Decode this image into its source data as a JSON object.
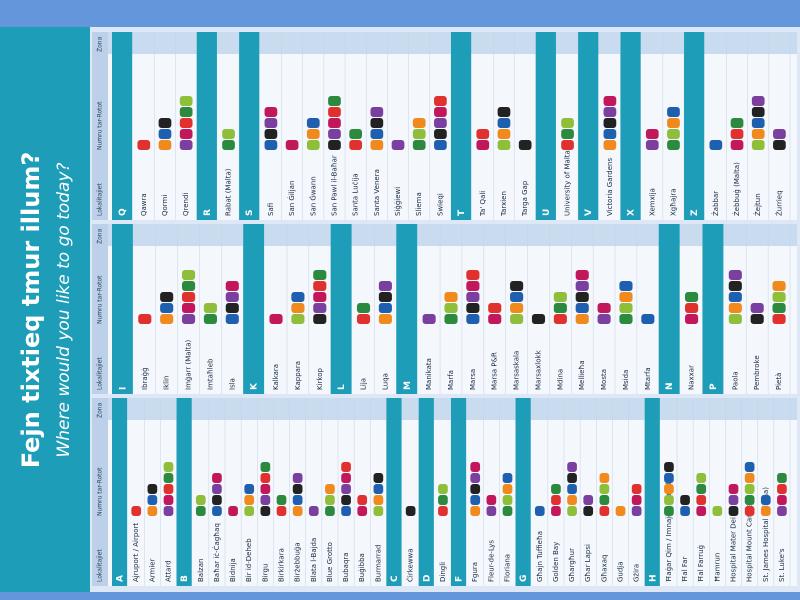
{
  "header": {
    "title": "Fejn tixtieq tmur illum?",
    "subtitle": "Where would you like to go today?"
  },
  "columns": [
    "Lokalitajiet",
    "Numru tar-Rotot",
    "Żona"
  ],
  "panels": [
    {
      "sections": [
        {
          "letter": "A",
          "localities": [
            "Ajruport / Airport",
            "Armier",
            "Attard"
          ]
        },
        {
          "letter": "B",
          "localities": [
            "Balzan",
            "Baħar iċ-Ċagħaq",
            "Bidnija",
            "Bir id-Deheb",
            "Birgu",
            "Birkirkara",
            "Birżebbuġa",
            "Blata l-Bajda",
            "Blue Grotto",
            "Bubaqra",
            "Buġibba",
            "Burmarrad"
          ]
        },
        {
          "letter": "C",
          "localities": [
            "Ċirkewwa"
          ]
        },
        {
          "letter": "D",
          "localities": [
            "Dingli"
          ]
        },
        {
          "letter": "F",
          "localities": [
            "Fgura",
            "Fleur-de-Lys",
            "Floriana"
          ]
        },
        {
          "letter": "G",
          "localities": [
            "Għajn Tuffieħa",
            "Golden Bay",
            "Għargħur",
            "Għar Lapsi",
            "Għaxaq",
            "Gudja",
            "Gżira"
          ]
        },
        {
          "letter": "H",
          "localities": [
            "Ħaġar Qim / Imnajdra Temples",
            "Ħal Far",
            "Ħal Farruġ",
            "Ħamrun",
            "Hospital Mater Dei",
            "Hospital Mount Carmel",
            "St. James Hospital (Sliema)",
            "St. Luke's"
          ]
        }
      ]
    },
    {
      "sections": [
        {
          "letter": "I",
          "localities": [
            "Ibraġġ",
            "Iklin",
            "Imġarr (Malta)",
            "Imtaħleb",
            "Isla"
          ]
        },
        {
          "letter": "K",
          "localities": [
            "Kalkara",
            "Kappara",
            "Kirkop"
          ]
        },
        {
          "letter": "L",
          "localities": [
            "Lija",
            "Luqa"
          ]
        },
        {
          "letter": "M",
          "localities": [
            "Manikata",
            "Marfa",
            "Marsa",
            "Marsa P&R",
            "Marsaskala",
            "Marsaxlokk",
            "Mdina",
            "Mellieħa",
            "Mosta",
            "Msida",
            "Mtarfa"
          ]
        },
        {
          "letter": "N",
          "localities": [
            "Naxxar"
          ]
        },
        {
          "letter": "P",
          "localities": [
            "Paola",
            "Pembroke",
            "Pietà"
          ]
        }
      ]
    },
    {
      "sections": [
        {
          "letter": "Q",
          "localities": [
            "Qawra",
            "Qormi",
            "Qrendi"
          ]
        },
        {
          "letter": "R",
          "localities": [
            "Rabat (Malta)"
          ]
        },
        {
          "letter": "S",
          "localities": [
            "Safi",
            "San Ġiljan",
            "San Ġwann",
            "San Pawl il-Baħar",
            "Santa Luċija",
            "Santa Venera",
            "Siġġiewi",
            "Sliema",
            "Swieqi"
          ]
        },
        {
          "letter": "T",
          "localities": [
            "Ta' Qali",
            "Tarxien",
            "Targa Gap"
          ]
        },
        {
          "letter": "U",
          "localities": [
            "University of Malta"
          ]
        },
        {
          "letter": "V",
          "localities": [
            "Victoria Gardens"
          ]
        },
        {
          "letter": "X",
          "localities": [
            "Xemxija",
            "Xgħajra"
          ]
        },
        {
          "letter": "Z",
          "localities": [
            "Żabbar",
            "Żebbuġ (Malta)",
            "Żejtun",
            "Żurrieq"
          ]
        }
      ]
    }
  ]
}
